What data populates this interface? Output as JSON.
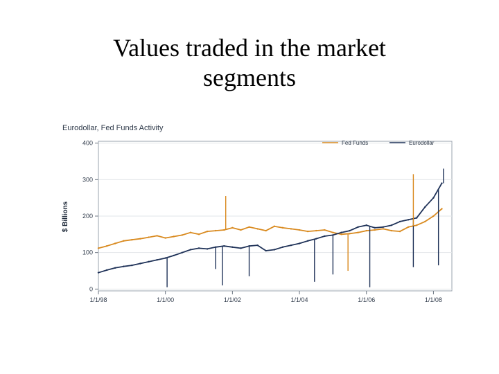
{
  "slide": {
    "title": "Values traded in the market\nsegments"
  },
  "chart_data": {
    "type": "line",
    "title": "Eurodollar, Fed Funds Activity",
    "xlabel": "",
    "ylabel": "$ Billions",
    "xlim": [
      1998.0,
      2008.55
    ],
    "ylim": [
      -5,
      405
    ],
    "x_ticks": [
      1998,
      2000,
      2002,
      2004,
      2006,
      2008
    ],
    "x_tick_labels": [
      "1/1/98",
      "1/1/00",
      "1/1/02",
      "1/1/04",
      "1/1/06",
      "1/1/08"
    ],
    "y_ticks": [
      0,
      100,
      200,
      300,
      400
    ],
    "y_tick_labels": [
      "0",
      "100",
      "200",
      "300",
      "400"
    ],
    "grid": true,
    "legend": "top-right",
    "series": [
      {
        "name": "Fed Funds",
        "color": "#d98a1f",
        "x": [
          1998.0,
          1998.25,
          1998.5,
          1998.75,
          1999.0,
          1999.25,
          1999.5,
          1999.75,
          2000.0,
          2000.25,
          2000.5,
          2000.75,
          2001.0,
          2001.25,
          2001.5,
          2001.75,
          2002.0,
          2002.25,
          2002.5,
          2002.75,
          2003.0,
          2003.25,
          2003.5,
          2003.75,
          2004.0,
          2004.25,
          2004.5,
          2004.75,
          2005.0,
          2005.25,
          2005.5,
          2005.75,
          2006.0,
          2006.25,
          2006.5,
          2006.75,
          2007.0,
          2007.25,
          2007.5,
          2007.75,
          2008.0,
          2008.25
        ],
        "y": [
          112,
          118,
          125,
          132,
          135,
          138,
          142,
          146,
          140,
          144,
          148,
          155,
          150,
          158,
          160,
          162,
          168,
          162,
          170,
          165,
          160,
          172,
          168,
          165,
          162,
          158,
          160,
          162,
          155,
          150,
          152,
          155,
          160,
          162,
          165,
          160,
          158,
          170,
          175,
          185,
          200,
          220
        ]
      },
      {
        "name": "Eurodollar",
        "color": "#1f3258",
        "x": [
          1998.0,
          1998.25,
          1998.5,
          1998.75,
          1999.0,
          1999.25,
          1999.5,
          1999.75,
          2000.0,
          2000.25,
          2000.5,
          2000.75,
          2001.0,
          2001.25,
          2001.5,
          2001.75,
          2002.0,
          2002.25,
          2002.5,
          2002.75,
          2003.0,
          2003.25,
          2003.5,
          2003.75,
          2004.0,
          2004.25,
          2004.5,
          2004.75,
          2005.0,
          2005.25,
          2005.5,
          2005.75,
          2006.0,
          2006.25,
          2006.5,
          2006.75,
          2007.0,
          2007.25,
          2007.5,
          2007.75,
          2008.0,
          2008.25
        ],
        "y": [
          45,
          52,
          58,
          62,
          65,
          70,
          75,
          80,
          85,
          92,
          100,
          108,
          112,
          110,
          115,
          118,
          115,
          112,
          118,
          120,
          105,
          108,
          115,
          120,
          125,
          132,
          138,
          145,
          148,
          155,
          160,
          170,
          175,
          168,
          170,
          175,
          185,
          190,
          195,
          225,
          250,
          290
        ]
      }
    ],
    "spikes": [
      {
        "series": 1,
        "x": 2000.05,
        "y": 5
      },
      {
        "series": 1,
        "x": 2001.5,
        "y": 55
      },
      {
        "series": 1,
        "x": 2001.7,
        "y": 10
      },
      {
        "series": 1,
        "x": 2002.5,
        "y": 35
      },
      {
        "series": 1,
        "x": 2004.45,
        "y": 20
      },
      {
        "series": 1,
        "x": 2005.0,
        "y": 40
      },
      {
        "series": 1,
        "x": 2006.1,
        "y": 5
      },
      {
        "series": 1,
        "x": 2007.4,
        "y": 60
      },
      {
        "series": 1,
        "x": 2008.15,
        "y": 65
      },
      {
        "series": 0,
        "x": 2001.8,
        "y": 255
      },
      {
        "series": 0,
        "x": 2005.45,
        "y": 50
      },
      {
        "series": 0,
        "x": 2007.4,
        "y": 315
      },
      {
        "series": 1,
        "x": 2008.3,
        "y": 330
      }
    ]
  }
}
